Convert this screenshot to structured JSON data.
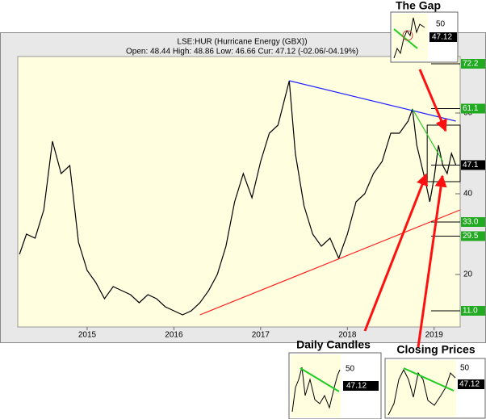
{
  "chart_data": {
    "type": "line",
    "title": "LSE:HUR (Hurricane Energy (GBX))",
    "subtitle": "Open: 48.44 High: 48.86 Low: 46.66 Cur: 47.12 (-02.06/-04.19%)",
    "x": [
      2014.22,
      2014.3,
      2014.4,
      2014.5,
      2014.6,
      2014.7,
      2014.8,
      2014.9,
      2015.0,
      2015.1,
      2015.2,
      2015.3,
      2015.4,
      2015.5,
      2015.6,
      2015.7,
      2015.8,
      2015.9,
      2016.0,
      2016.1,
      2016.2,
      2016.3,
      2016.4,
      2016.5,
      2016.6,
      2016.7,
      2016.8,
      2016.9,
      2017.0,
      2017.1,
      2017.2,
      2017.33,
      2017.4,
      2017.5,
      2017.6,
      2017.7,
      2017.8,
      2017.9,
      2018.0,
      2018.1,
      2018.2,
      2018.3,
      2018.4,
      2018.5,
      2018.6,
      2018.7,
      2018.75,
      2018.8,
      2018.9,
      2018.95,
      2019.0,
      2019.05,
      2019.1,
      2019.15,
      2019.2,
      2019.25
    ],
    "series": [
      {
        "color": "#000000",
        "values": [
          25,
          30,
          29,
          36,
          53,
          45,
          47,
          28,
          21,
          18,
          14,
          17,
          16,
          15,
          13,
          15,
          14,
          12,
          11,
          10,
          11,
          13,
          16,
          20,
          27,
          38,
          45,
          39,
          48,
          55,
          57,
          68,
          50,
          37,
          30,
          27,
          29,
          24,
          30,
          38,
          40,
          45,
          48,
          55,
          55,
          58,
          61,
          52,
          43,
          38,
          44,
          52,
          47,
          45,
          50,
          47.12
        ]
      }
    ],
    "xlim": [
      2014.2,
      2019.3
    ],
    "xticks": [
      2015,
      2016,
      2017,
      2018,
      2019
    ],
    "ylim": [
      7,
      74
    ],
    "yticks": [
      20,
      40,
      60
    ],
    "trend_lines": [
      {
        "color": "#2020ff",
        "points": [
          [
            2017.33,
            68
          ],
          [
            2019.25,
            58
          ]
        ]
      },
      {
        "color": "#ff2020",
        "points": [
          [
            2016.3,
            10
          ],
          [
            2019.3,
            36
          ]
        ]
      },
      {
        "color": "#20cc20",
        "points": [
          [
            2018.75,
            61
          ],
          [
            2019.1,
            48
          ]
        ]
      }
    ],
    "highlight_box": {
      "xlim": [
        2018.92,
        2019.3
      ],
      "ylim": [
        43,
        57
      ]
    },
    "price_labels": [
      {
        "value": 72.2,
        "label": "72.2",
        "color": "#22aa22"
      },
      {
        "value": 61.1,
        "label": "61.1",
        "color": "#22aa22"
      },
      {
        "value": 47.1,
        "label": "47.1",
        "color": "#000000"
      },
      {
        "value": 33.0,
        "label": "33.0",
        "color": "#22aa22"
      },
      {
        "value": 29.5,
        "label": "29.5",
        "color": "#22aa22"
      },
      {
        "value": 11.0,
        "label": "11.0",
        "color": "#22aa22"
      }
    ]
  },
  "insets": [
    {
      "title": "The Gap",
      "tick_label": 50,
      "price_label": 47.12
    },
    {
      "title": "Daily Candles",
      "tick_label": 50,
      "price_label": 47.12
    },
    {
      "title": "Closing Prices",
      "tick_label": 50,
      "price_label": 47.12
    }
  ]
}
